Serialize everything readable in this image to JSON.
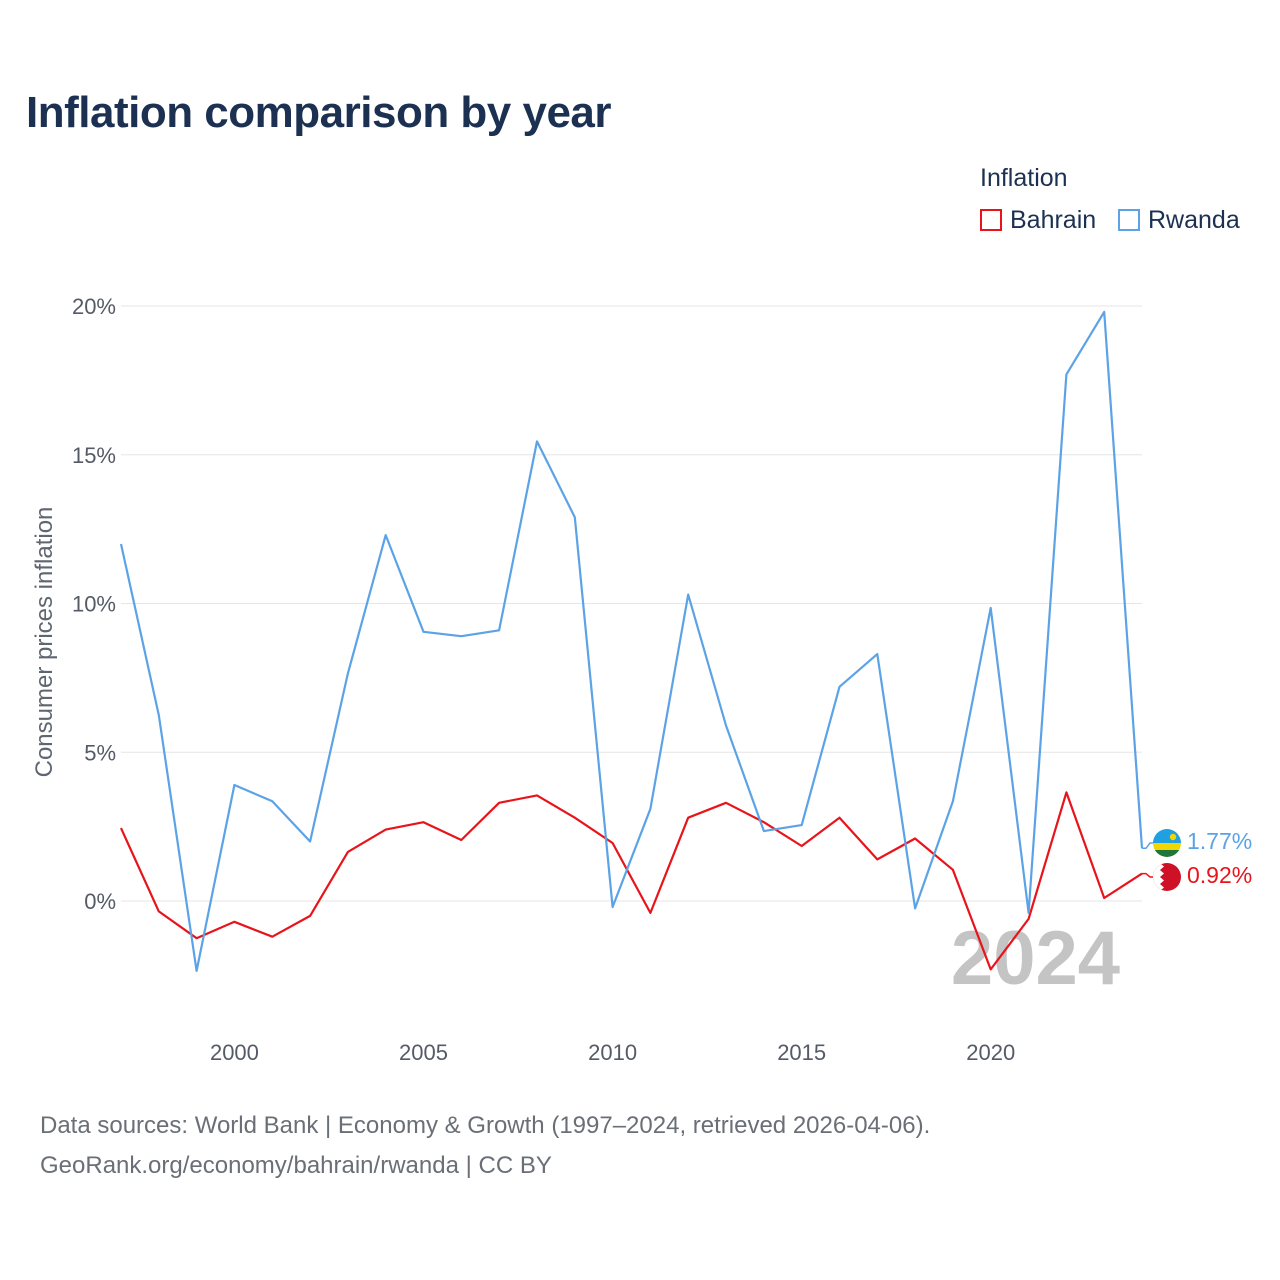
{
  "title": "Inflation comparison by year",
  "legend": {
    "title": "Inflation",
    "items": [
      {
        "name": "Bahrain",
        "color": "#e8141b"
      },
      {
        "name": "Rwanda",
        "color": "#5ba3e6"
      }
    ]
  },
  "watermark_year": "2024",
  "end_labels": {
    "Bahrain": "0.92%",
    "Rwanda": "1.77%"
  },
  "flags": {
    "Bahrain": "bahrain-flag-icon",
    "Rwanda": "rwanda-flag-icon"
  },
  "footer": {
    "line1": "Data sources: World Bank | Economy & Growth (1997–2024, retrieved 2026-04-06).",
    "line2": "GeoRank.org/economy/bahrain/rwanda | CC BY"
  },
  "chart_data": {
    "type": "line",
    "title": "Inflation comparison by year",
    "xlabel": "",
    "ylabel": "Consumer prices inflation",
    "x": [
      1997,
      1998,
      1999,
      2000,
      2001,
      2002,
      2003,
      2004,
      2005,
      2006,
      2007,
      2008,
      2009,
      2010,
      2011,
      2012,
      2013,
      2014,
      2015,
      2016,
      2017,
      2018,
      2019,
      2020,
      2021,
      2022,
      2023,
      2024
    ],
    "xlim": [
      1997,
      2024
    ],
    "ylim": [
      -4,
      20
    ],
    "x_ticks": [
      2000,
      2005,
      2010,
      2015,
      2020
    ],
    "y_ticks": [
      0,
      5,
      10,
      15,
      20
    ],
    "y_tick_labels": [
      "0%",
      "5%",
      "10%",
      "15%",
      "20%"
    ],
    "grid": true,
    "legend_position": "top-right",
    "series": [
      {
        "name": "Bahrain",
        "color": "#e8141b",
        "values": [
          2.45,
          -0.35,
          -1.25,
          -0.7,
          -1.2,
          -0.5,
          1.65,
          2.4,
          2.65,
          2.05,
          3.3,
          3.55,
          2.8,
          1.95,
          -0.4,
          2.8,
          3.3,
          2.65,
          1.85,
          2.8,
          1.4,
          2.1,
          1.05,
          -2.3,
          -0.6,
          3.65,
          0.1,
          0.92
        ]
      },
      {
        "name": "Rwanda",
        "color": "#5ba3e6",
        "values": [
          12.0,
          6.25,
          -2.35,
          3.9,
          3.35,
          2.0,
          7.65,
          12.3,
          9.05,
          8.9,
          9.1,
          15.45,
          12.9,
          -0.2,
          3.1,
          10.3,
          5.9,
          2.35,
          2.55,
          7.2,
          8.3,
          -0.25,
          3.35,
          9.85,
          -0.4,
          17.7,
          19.8,
          1.77
        ]
      }
    ]
  }
}
